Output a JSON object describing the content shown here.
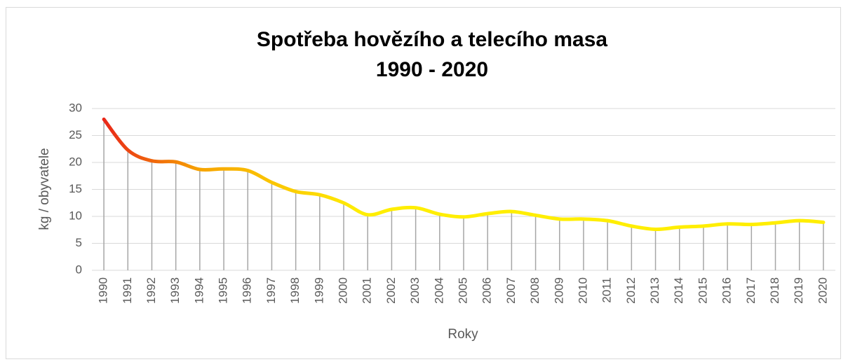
{
  "chart_data": {
    "type": "line",
    "title": "Spotřeba hovězího a telecího masa",
    "subtitle": "1990 - 2020",
    "x_label": "Roky",
    "y_label": "kg / obyvatele",
    "categories": [
      "1990",
      "1991",
      "1992",
      "1993",
      "1994",
      "1995",
      "1996",
      "1997",
      "1998",
      "1999",
      "2000",
      "2001",
      "2002",
      "2003",
      "2004",
      "2005",
      "2006",
      "2007",
      "2008",
      "2009",
      "2010",
      "2011",
      "2012",
      "2013",
      "2014",
      "2015",
      "2016",
      "2017",
      "2018",
      "2019",
      "2020"
    ],
    "series": [
      {
        "name": "kg / obyvatele",
        "colors": [
          "#e8201a",
          "#f7a400",
          "#ffee00"
        ],
        "values": [
          28.0,
          22.3,
          20.3,
          20.1,
          18.7,
          18.8,
          18.5,
          16.3,
          14.6,
          14.0,
          12.5,
          10.3,
          11.3,
          11.6,
          10.4,
          9.9,
          10.5,
          10.9,
          10.2,
          9.5,
          9.5,
          9.2,
          8.2,
          7.6,
          8.0,
          8.2,
          8.6,
          8.5,
          8.8,
          9.2,
          8.9
        ]
      }
    ],
    "ylim": [
      0,
      30
    ],
    "yticks": [
      0,
      5,
      10,
      15,
      20,
      25,
      30
    ],
    "grid": true,
    "drop_lines": true,
    "smooth": true
  }
}
